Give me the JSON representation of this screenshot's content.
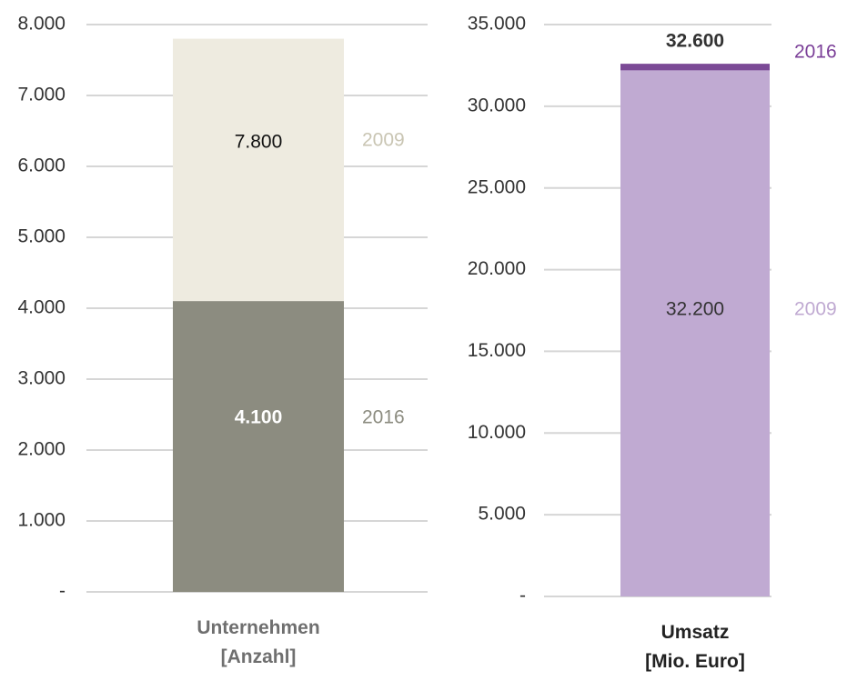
{
  "chart_data": [
    {
      "type": "bar",
      "categories": [
        "Unternehmen [Anzahl]"
      ],
      "series": [
        {
          "name": "2009",
          "color": "#eeebe0",
          "values": [
            7800
          ],
          "value_labels": [
            "7.800"
          ]
        },
        {
          "name": "2016",
          "color": "#8c8c80",
          "values": [
            4100
          ],
          "value_labels": [
            "4.100"
          ]
        }
      ],
      "ylim": [
        0,
        8000
      ],
      "yticks": [
        {
          "value": 0,
          "label": "-"
        },
        {
          "value": 1000,
          "label": "1.000"
        },
        {
          "value": 2000,
          "label": "2.000"
        },
        {
          "value": 3000,
          "label": "3.000"
        },
        {
          "value": 4000,
          "label": "4.000"
        },
        {
          "value": 5000,
          "label": "5.000"
        },
        {
          "value": 6000,
          "label": "6.000"
        },
        {
          "value": 7000,
          "label": "7.000"
        },
        {
          "value": 8000,
          "label": "8.000"
        }
      ],
      "grid": true
    },
    {
      "type": "bar",
      "categories": [
        "Umsatz [Mio. Euro]"
      ],
      "series": [
        {
          "name": "2016",
          "color": "#7b4a96",
          "values": [
            32600
          ],
          "value_labels": [
            "32.600"
          ]
        },
        {
          "name": "2009",
          "color": "#c0aad2",
          "values": [
            32200
          ],
          "value_labels": [
            "32.200"
          ]
        }
      ],
      "ylim": [
        0,
        35000
      ],
      "yticks": [
        {
          "value": 0,
          "label": "-"
        },
        {
          "value": 5000,
          "label": "5.000"
        },
        {
          "value": 10000,
          "label": "10.000"
        },
        {
          "value": 15000,
          "label": "15.000"
        },
        {
          "value": 20000,
          "label": "20.000"
        },
        {
          "value": 25000,
          "label": "25.000"
        },
        {
          "value": 30000,
          "label": "30.000"
        },
        {
          "value": 35000,
          "label": "35.000"
        }
      ],
      "grid": true
    }
  ]
}
